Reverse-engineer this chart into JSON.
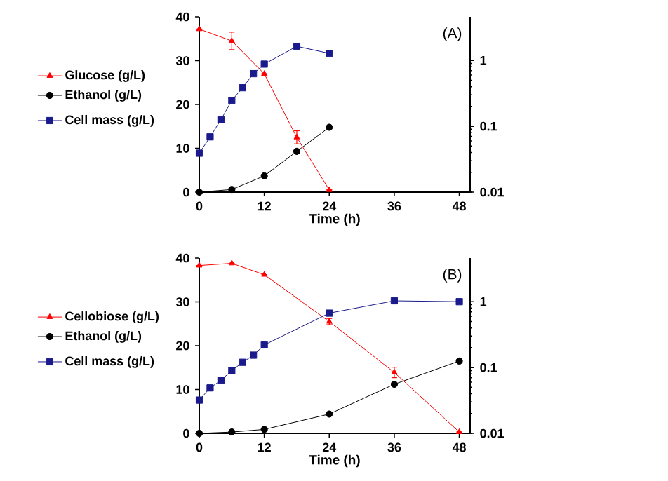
{
  "chart_data": [
    {
      "type": "line",
      "title": "(A)",
      "legend": "left",
      "xlabel": "Time (h)",
      "xlim": [
        0,
        50
      ],
      "xticks": [
        0,
        12,
        24,
        36,
        48
      ],
      "ylim": [
        0,
        40
      ],
      "yticks": [
        0,
        10,
        20,
        30,
        40
      ],
      "y2lim": [
        0.01,
        4.6
      ],
      "y2ticks": [
        0.01,
        0.1,
        1
      ],
      "log": "y2",
      "series": [
        {
          "name": "Glucose (g/L)",
          "color": "#ff0000",
          "marker": "triangle",
          "x": [
            0,
            6,
            12,
            18,
            24
          ],
          "values": [
            37.2,
            34.5,
            27,
            12.5,
            0.5
          ],
          "errors": [
            null,
            2,
            null,
            1.5,
            null
          ]
        },
        {
          "name": "Ethanol (g/L)",
          "color": "#000000",
          "marker": "circle",
          "x": [
            0,
            6,
            12,
            18,
            24
          ],
          "values": [
            0,
            0.6,
            3.7,
            9.3,
            14.8
          ]
        },
        {
          "name": "Cell mass (g/L)",
          "color": "#1a1a8c",
          "marker": "square",
          "axis": "y2",
          "x": [
            0,
            2,
            4,
            6,
            8,
            10,
            12,
            18,
            24
          ],
          "values": [
            0.039,
            0.069,
            0.126,
            0.247,
            0.385,
            0.63,
            0.88,
            1.64,
            1.28
          ]
        }
      ]
    },
    {
      "type": "line",
      "title": "(B)",
      "legend": "left",
      "xlabel": "Time (h)",
      "xlim": [
        0,
        50
      ],
      "xticks": [
        0,
        12,
        24,
        36,
        48
      ],
      "ylim": [
        0,
        40
      ],
      "yticks": [
        0,
        10,
        20,
        30,
        40
      ],
      "y2lim": [
        0.01,
        4.6
      ],
      "y2ticks": [
        0.01,
        0.1,
        1
      ],
      "log": "y2",
      "series": [
        {
          "name": "Cellobiose (g/L)",
          "color": "#ff0000",
          "marker": "triangle",
          "x": [
            0,
            6,
            12,
            24,
            36,
            48
          ],
          "values": [
            38.3,
            38.8,
            36.2,
            25.5,
            13.9,
            0.3
          ],
          "errors": [
            null,
            null,
            null,
            0.7,
            1.2,
            null
          ]
        },
        {
          "name": "Ethanol (g/L)",
          "color": "#000000",
          "marker": "circle",
          "x": [
            0,
            6,
            12,
            24,
            36,
            48
          ],
          "values": [
            0,
            0.3,
            0.9,
            4.4,
            11.2,
            16.5
          ]
        },
        {
          "name": "Cell mass (g/L)",
          "color": "#1a1a8c",
          "marker": "square",
          "axis": "y2",
          "x": [
            0,
            2,
            4,
            6,
            8,
            10,
            12,
            24,
            36,
            48
          ],
          "values": [
            0.032,
            0.049,
            0.064,
            0.09,
            0.12,
            0.154,
            0.22,
            0.67,
            1.03,
            1.0
          ]
        }
      ]
    }
  ]
}
